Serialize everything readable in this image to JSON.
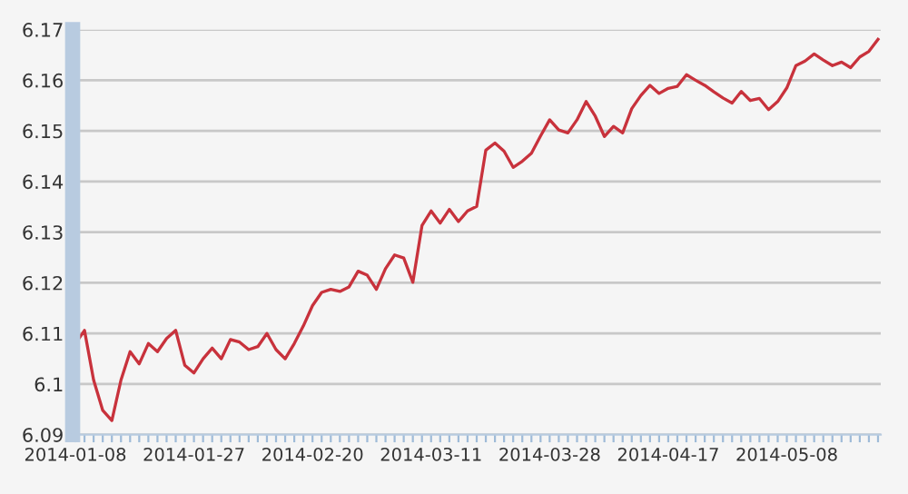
{
  "chart_data": {
    "type": "line",
    "categories": [
      "2014-01-08",
      null,
      null,
      null,
      null,
      null,
      null,
      null,
      null,
      null,
      null,
      null,
      null,
      "2014-01-27",
      null,
      null,
      null,
      null,
      null,
      null,
      null,
      null,
      null,
      null,
      null,
      null,
      "2014-02-20",
      null,
      null,
      null,
      null,
      null,
      null,
      null,
      null,
      null,
      null,
      null,
      null,
      "2014-03-11",
      null,
      null,
      null,
      null,
      null,
      null,
      null,
      null,
      null,
      null,
      null,
      null,
      "2014-03-28",
      null,
      null,
      null,
      null,
      null,
      null,
      null,
      null,
      null,
      null,
      null,
      null,
      "2014-04-17",
      null,
      null,
      null,
      null,
      null,
      null,
      null,
      null,
      null,
      null,
      null,
      null,
      "2014-05-08",
      null,
      null,
      null,
      null,
      null,
      null,
      null,
      null,
      null,
      null
    ],
    "series": [
      {
        "color": "#c8323c",
        "values": [
          6.108,
          6.1106,
          6.1008,
          6.0948,
          6.0928,
          6.1008,
          6.1064,
          6.104,
          6.108,
          6.1064,
          6.109,
          6.1106,
          6.1037,
          6.1022,
          6.105,
          6.1071,
          6.105,
          6.1088,
          6.1083,
          6.1068,
          6.1074,
          6.11,
          6.1068,
          6.105,
          6.108,
          6.1115,
          6.1155,
          6.1181,
          6.1187,
          6.1183,
          6.1192,
          6.1223,
          6.1215,
          6.1187,
          6.1228,
          6.1255,
          6.1249,
          6.1201,
          6.1313,
          6.1342,
          6.1318,
          6.1345,
          6.1321,
          6.1342,
          6.1351,
          6.1462,
          6.1476,
          6.146,
          6.1428,
          6.144,
          6.1456,
          6.149,
          6.1522,
          6.1502,
          6.1496,
          6.1522,
          6.1558,
          6.1529,
          6.1489,
          6.1509,
          6.1496,
          6.1544,
          6.157,
          6.159,
          6.1574,
          6.1584,
          6.1588,
          6.1611,
          6.16,
          6.159,
          6.1577,
          6.1565,
          6.1555,
          6.1578,
          6.156,
          6.1564,
          6.1542,
          6.1558,
          6.1585,
          6.1629,
          6.1638,
          6.1652,
          6.164,
          6.1629,
          6.1636,
          6.1625,
          6.1646,
          6.1657,
          6.1681
        ]
      }
    ],
    "ylim": [
      6.09,
      6.17
    ],
    "yticks": [
      6.09,
      6.1,
      6.11,
      6.12,
      6.13,
      6.14,
      6.15,
      6.16,
      6.17
    ],
    "grid": "y",
    "marker": "none",
    "line_style": "solid"
  }
}
